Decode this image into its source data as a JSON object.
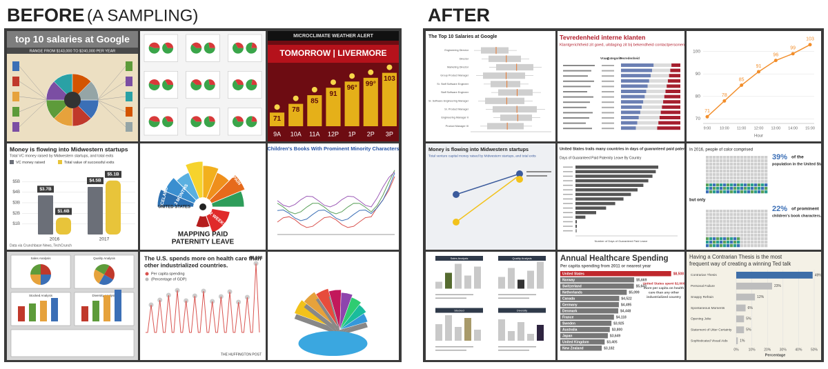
{
  "before": {
    "title": "BEFORE",
    "subtitle": "(A SAMPLING)",
    "panels": [
      {
        "type": "salaries",
        "title": "top 10 salaries at Google",
        "subtitle": "RANGE FROM $143,000 TO $240,000 PER YEAR"
      },
      {
        "type": "pie-grid"
      },
      {
        "type": "weather",
        "title": "MICROCLIMATE WEATHER ALERT",
        "subtitle": "TOMORROW | LIVERMORE",
        "categories": [
          "9A",
          "10A",
          "11A",
          "12P",
          "1P",
          "2P",
          "3P"
        ],
        "values": [
          71,
          78,
          85,
          91,
          96,
          99,
          103
        ],
        "value_labels": [
          "71",
          "78",
          "85",
          "91",
          "96°",
          "99°",
          "103"
        ]
      },
      {
        "type": "startups-corn",
        "title": "Money is flowing into Midwestern startups",
        "subtitle": "Total VC money raised by Midwestern startups, and total exits",
        "categories": [
          "2016",
          "2017"
        ],
        "series": [
          {
            "name": "VC money raised",
            "color": "#6b6f78",
            "values": [
              3.7,
              4.5
            ],
            "value_labels": [
              "$3.7B",
              "$4.5B"
            ]
          },
          {
            "name": "Total value of successful exits",
            "color": "#e8c43a",
            "values": [
              1.6,
              5.1
            ],
            "value_labels": [
              "$1.6B",
              "$5.1B"
            ]
          }
        ],
        "ylim": [
          0,
          6
        ],
        "yticks": [
          {
            "value": 1,
            "label": "$1B"
          },
          {
            "value": 2,
            "label": "$2B"
          },
          {
            "value": 3,
            "label": "$3B"
          },
          {
            "value": 4,
            "label": "$4B"
          },
          {
            "value": 5,
            "label": "$5B"
          }
        ],
        "source": "Data via Crunchbase News, TechCrunch"
      },
      {
        "type": "paternity",
        "title": [
          "MAPPING PAID",
          "PATERNITY LEAVE"
        ],
        "labels": [
          "ICELAND",
          "FINLAND",
          "PORTUGAL",
          "SPAIN",
          "3 MONTHS",
          "UNITED STATES",
          "2 WEEKS"
        ]
      },
      {
        "type": "books-lines",
        "title": "Children's Books With Prominent Minority Characters"
      },
      {
        "type": "dashboards",
        "labels": [
          "Sales Analysis",
          "Quality Analysis",
          "Stocked Analysis",
          "Diversity Analysis"
        ]
      },
      {
        "type": "health-peaks",
        "title": [
          "The U.S. spends more on health care than",
          "other industrialized countries."
        ],
        "legend": [
          "Per capita spending",
          "(Percentage of GDP)"
        ],
        "annotation": "$8,508",
        "source": "THE HUFFINGTON POST"
      },
      {
        "type": "fan-3d"
      }
    ]
  },
  "after": {
    "title": "AFTER",
    "panels": [
      {
        "type": "box-salaries",
        "title": "The Top 10 Salaries at Google",
        "rows": [
          "Engineering Director",
          "Director",
          "Marketing Director",
          "Group Product Manager",
          "Sr. Staff Software Engineer",
          "Staff Software Engineer",
          "Sr. Software Engineering Manager",
          "Sr. Product Manager",
          "Engineering Manager II",
          "Product Manager III"
        ]
      },
      {
        "type": "diverging",
        "title": "Tevredenheid interne klanten",
        "subtitle": "Klantgerichtheid zit goed, uitdaging zit bij bekendheid contactpersonen",
        "columns": [
          "Vraag",
          "Categorie",
          "Tevredenheid"
        ]
      },
      {
        "type": "line",
        "categories": [
          "9:00",
          "10:00",
          "11:00",
          "12:00",
          "13:00",
          "14:00",
          "15:00"
        ],
        "values": [
          71,
          78,
          85,
          91,
          96,
          99,
          103
        ],
        "ylim": [
          68,
          106
        ],
        "yticks": [
          70,
          80,
          90,
          100
        ],
        "xlabel": "Hour",
        "color": "#f28e2b"
      },
      {
        "type": "slope",
        "title": "Money is flowing into Midwestern startups",
        "subtitle": "Total venture capital money raised by Midwestern startups, and total exits"
      },
      {
        "type": "paternity-bars",
        "title": "United States trails many countries in days of guaranteed paid paternity leave",
        "subtitle": "Days of Guaranteed Paid Paternity Leave By Country",
        "xlabel": "Number of Days of Guaranteed Paid Leave"
      },
      {
        "type": "waffle",
        "texts": [
          "In 2016, people of color comprised",
          "39%",
          "of the",
          "population in the United States,",
          "but only",
          "22%",
          "of prominent",
          "children's book characters."
        ]
      },
      {
        "type": "small-multiples",
        "labels": [
          "Sales Analysis",
          "Quality Analysis",
          "Stocked",
          "Diversity"
        ]
      },
      {
        "type": "health-bars",
        "title": "Annual Healthcare Spending",
        "subtitle": "Per capita spending from 2011 or nearest year",
        "categories": [
          "United States",
          "Norway",
          "Switzerland",
          "Netherlands",
          "Canada",
          "Germany",
          "Denmark",
          "France",
          "Sweden",
          "Australia",
          "Japan",
          "United Kingdom",
          "New Zealand"
        ],
        "values": [
          8508,
          5669,
          5643,
          5099,
          4522,
          4495,
          4448,
          4118,
          3925,
          3800,
          3649,
          3405,
          3182
        ],
        "value_labels": [
          "$8,508",
          "$5,669",
          "$5,643",
          "$5,099",
          "$4,522",
          "$4,495",
          "$4,448",
          "$4,118",
          "$3,925",
          "$3,800",
          "$3,649",
          "$3,405",
          "$3,182"
        ],
        "colors": [
          "#c0282d",
          "#777777",
          "#777777",
          "#777777",
          "#777777",
          "#777777",
          "#777777",
          "#777777",
          "#777777",
          "#777777",
          "#777777",
          "#777777",
          "#777777"
        ],
        "xlim": [
          0,
          9000
        ],
        "annotation": [
          "United States spent $2,000",
          "more per capita on health",
          "care than any other",
          "industrialized country"
        ]
      },
      {
        "type": "ted-bars",
        "title": [
          "Having a Contrarian Thesis is the most",
          "frequent way of creating a winning Ted talk"
        ],
        "categories": [
          "Contrarian Thesis",
          "Personal Failure",
          "Snappy Refrain",
          "Spontaneous Moments",
          "Opening Joke",
          "Statement of Utter Certainty",
          "Sophisticated Visual Aids"
        ],
        "values": [
          49,
          23,
          12,
          6,
          5,
          5,
          1
        ],
        "value_labels": [
          "49%",
          "23%",
          "12%",
          "6%",
          "5%",
          "5%",
          "1%"
        ],
        "colors": [
          "#3e6ea8",
          "#bdbdbd",
          "#bdbdbd",
          "#bdbdbd",
          "#bdbdbd",
          "#bdbdbd",
          "#bdbdbd"
        ],
        "xlim": [
          0,
          50
        ],
        "xticks": [
          {
            "value": 0,
            "label": "0%"
          },
          {
            "value": 10,
            "label": "10%"
          },
          {
            "value": 20,
            "label": "20%"
          },
          {
            "value": 30,
            "label": "30%"
          },
          {
            "value": 40,
            "label": "40%"
          },
          {
            "value": 50,
            "label": "50%"
          }
        ],
        "xlabel": "Percentage"
      }
    ]
  }
}
